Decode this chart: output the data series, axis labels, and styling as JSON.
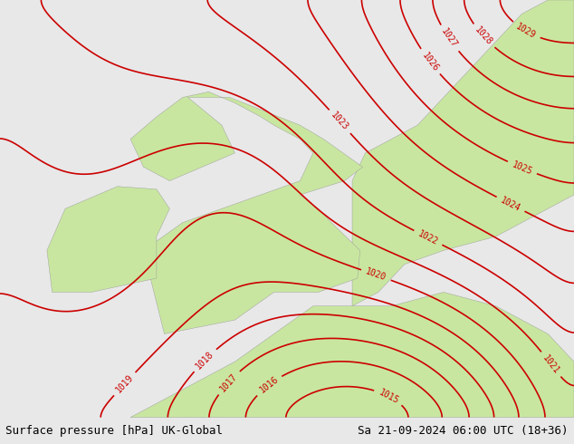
{
  "title_left": "Surface pressure [hPa] UK-Global",
  "title_right": "Sa 21-09-2024 06:00 UTC (18+36)",
  "background_color": "#e8e8e8",
  "land_color": "#c8e6a0",
  "sea_color": "#dcdcdc",
  "contour_color": "#cc0000",
  "contour_label_color": "#cc0000",
  "contour_linewidth": 1.2,
  "font_size_title": 9,
  "font_size_contour": 7,
  "pressure_min": 1014,
  "pressure_max": 1030,
  "pressure_step": 1,
  "lon_min": -12,
  "lon_max": 10,
  "lat_min": 47,
  "lat_max": 62
}
